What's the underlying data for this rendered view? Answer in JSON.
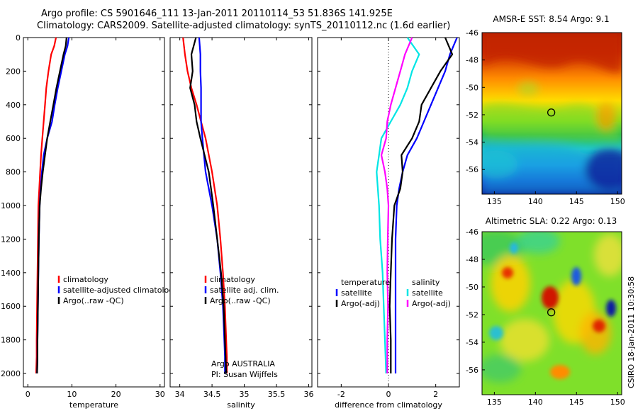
{
  "title": {
    "line1": "Argo profile: CS 5901646_111 13-Jan-2011 20110114_53 51.836S 141.925E",
    "line2": "Climatology: CARS2009. Satellite-adjusted climatology: synTS_20110112.nc (1.6d earlier)"
  },
  "credit": "CSIRO 18-Jan-2011 10:30:58",
  "colors": {
    "climatology": "#ff0000",
    "satellite": "#0000ff",
    "argo": "#000000",
    "argo_adj": "#ff00ff",
    "satellite_sal": "#00e5e5"
  },
  "chart_data": [
    {
      "type": "line",
      "xlabel": "temperature",
      "ylabel": "",
      "xlim": [
        -1,
        31
      ],
      "ylim": [
        2080,
        0
      ],
      "y_reversed": true,
      "xticks": [
        0,
        10,
        20,
        30
      ],
      "yticks": [
        0,
        200,
        400,
        600,
        800,
        1000,
        1200,
        1400,
        1600,
        1800,
        2000
      ],
      "legend_position": "bottom-right",
      "legend": [
        "climatology",
        "satellite-adjusted climatology",
        "Argo(..raw -QC)"
      ],
      "series": [
        {
          "name": "climatology",
          "color": "#ff0000",
          "x": [
            6.4,
            6.0,
            5.3,
            4.7,
            4.2,
            3.9,
            3.6,
            3.3,
            3.0,
            2.8,
            2.6,
            2.4,
            2.3,
            2.2,
            2.1,
            2.0,
            2.0,
            1.9
          ],
          "y": [
            0,
            50,
            100,
            200,
            300,
            400,
            500,
            600,
            700,
            800,
            900,
            1000,
            1200,
            1400,
            1600,
            1800,
            1900,
            2000
          ]
        },
        {
          "name": "satellite-adjusted climatology",
          "color": "#0000ff",
          "x": [
            9.3,
            9.0,
            8.4,
            7.6,
            6.8,
            6.1,
            5.5,
            4.4,
            3.6,
            3.2,
            2.9,
            2.7,
            2.5,
            2.4,
            2.3,
            2.2,
            2.2,
            2.1
          ],
          "y": [
            0,
            50,
            100,
            200,
            300,
            400,
            500,
            600,
            700,
            800,
            900,
            1000,
            1200,
            1400,
            1600,
            1800,
            1900,
            2000
          ]
        },
        {
          "name": "Argo(..raw -QC)",
          "color": "#000000",
          "x": [
            8.8,
            8.6,
            8.1,
            7.3,
            6.5,
            5.8,
            5.1,
            4.4,
            3.9,
            3.4,
            3.0,
            2.7,
            2.5,
            2.4,
            2.3,
            2.2,
            2.2,
            2.1
          ],
          "y": [
            0,
            50,
            100,
            200,
            300,
            400,
            500,
            600,
            700,
            800,
            900,
            1000,
            1200,
            1400,
            1600,
            1800,
            1900,
            2000
          ]
        }
      ]
    },
    {
      "type": "line",
      "xlabel": "salinity",
      "ylabel": "",
      "xlim": [
        33.85,
        36.05
      ],
      "ylim": [
        2080,
        0
      ],
      "y_reversed": true,
      "xticks": [
        34,
        34.5,
        35,
        35.5,
        36
      ],
      "yticks": [
        0,
        200,
        400,
        600,
        800,
        1000,
        1200,
        1400,
        1600,
        1800,
        2000
      ],
      "legend_position": "bottom-right",
      "legend": [
        "climatology",
        "satellite adj. clim.",
        "Argo(..raw -QC)"
      ],
      "annotations": [
        "Argo AUSTRALIA",
        "PI: Susan Wijffels"
      ],
      "series": [
        {
          "name": "climatology",
          "color": "#ff0000",
          "x": [
            34.05,
            34.08,
            34.12,
            34.18,
            34.26,
            34.33,
            34.4,
            34.5,
            34.58,
            34.63,
            34.67,
            34.7,
            34.72,
            34.73,
            34.73
          ],
          "y": [
            0,
            100,
            200,
            300,
            400,
            500,
            600,
            800,
            1000,
            1200,
            1400,
            1600,
            1800,
            1900,
            2000
          ]
        },
        {
          "name": "satellite adj. clim.",
          "color": "#0000ff",
          "x": [
            34.3,
            34.32,
            34.32,
            34.33,
            34.33,
            34.33,
            34.35,
            34.4,
            34.5,
            34.58,
            34.63,
            34.67,
            34.69,
            34.7,
            34.7
          ],
          "y": [
            0,
            100,
            200,
            300,
            400,
            500,
            600,
            800,
            1000,
            1200,
            1400,
            1600,
            1800,
            1900,
            2000
          ]
        },
        {
          "name": "Argo(..raw -QC)",
          "color": "#000000",
          "x": [
            34.25,
            34.18,
            34.2,
            34.16,
            34.23,
            34.26,
            34.32,
            34.45,
            34.52,
            34.58,
            34.64,
            34.68,
            34.7,
            34.71,
            34.72
          ],
          "y": [
            0,
            100,
            200,
            300,
            400,
            500,
            600,
            800,
            1000,
            1200,
            1400,
            1600,
            1800,
            1900,
            2000
          ]
        }
      ]
    },
    {
      "type": "line",
      "xlabel": "difference from climatology",
      "ylabel": "",
      "xlim": [
        -3,
        3
      ],
      "ylim": [
        2080,
        0
      ],
      "y_reversed": true,
      "xticks": [
        -2,
        0,
        2
      ],
      "yticks": [
        0,
        200,
        400,
        600,
        800,
        1000,
        1200,
        1400,
        1600,
        1800,
        2000
      ],
      "zero_line": "dotted",
      "legend_position": "bottom",
      "legend_groups": [
        {
          "heading": "temperature",
          "items": [
            "satellite",
            "Argo(-adj)"
          ]
        },
        {
          "heading": "salinity",
          "items": [
            "satellite",
            "Argo(-adj)"
          ]
        }
      ],
      "series": [
        {
          "name": "temperature satellite",
          "color": "#0000ff",
          "x": [
            2.9,
            2.6,
            2.4,
            2.1,
            1.8,
            1.5,
            1.2,
            0.8,
            0.6,
            0.45,
            0.35,
            0.3,
            0.3,
            0.3,
            0.3,
            0.3
          ],
          "y": [
            0,
            100,
            200,
            300,
            400,
            500,
            600,
            700,
            800,
            900,
            1000,
            1200,
            1400,
            1600,
            1800,
            2000
          ]
        },
        {
          "name": "temperature Argo(-adj)",
          "color": "#000000",
          "x": [
            2.4,
            2.7,
            2.2,
            1.8,
            1.4,
            1.3,
            1.0,
            0.55,
            0.6,
            0.5,
            0.25,
            0.15,
            0.1,
            0.05,
            0.1,
            0.1
          ],
          "y": [
            0,
            100,
            200,
            300,
            400,
            500,
            600,
            700,
            800,
            900,
            1000,
            1200,
            1400,
            1600,
            1800,
            2000
          ]
        },
        {
          "name": "salinity satellite",
          "color": "#00e5e5",
          "x": [
            0.8,
            1.3,
            1.0,
            0.8,
            0.5,
            0.1,
            -0.3,
            -0.4,
            -0.5,
            -0.45,
            -0.4,
            -0.35,
            -0.25,
            -0.2,
            -0.15,
            -0.1
          ],
          "y": [
            0,
            100,
            200,
            300,
            400,
            500,
            600,
            700,
            800,
            900,
            1000,
            1200,
            1400,
            1600,
            1800,
            2000
          ]
        },
        {
          "name": "salinity Argo(-adj)",
          "color": "#ff00ff",
          "x": [
            1.0,
            0.7,
            0.5,
            0.3,
            0.1,
            -0.05,
            -0.1,
            -0.3,
            -0.15,
            -0.05,
            0.0,
            -0.03,
            -0.05,
            -0.02,
            -0.05,
            -0.05
          ],
          "y": [
            0,
            100,
            200,
            300,
            400,
            500,
            600,
            700,
            800,
            900,
            1000,
            1200,
            1400,
            1600,
            1800,
            2000
          ]
        }
      ]
    },
    {
      "type": "heatmap",
      "title": "AMSR-E SST: 8.54 Argo: 9.1",
      "xlim": [
        133.5,
        150.5
      ],
      "ylim": [
        -57.8,
        -46
      ],
      "xticks": [
        135,
        140,
        145,
        150
      ],
      "yticks": [
        -46,
        -48,
        -50,
        -52,
        -54,
        -56
      ],
      "marker": {
        "lon": 141.925,
        "lat": -51.836
      }
    },
    {
      "type": "heatmap",
      "title": "Altimetric SLA: 0.22 Argo: 0.13",
      "xlim": [
        133.5,
        150.5
      ],
      "ylim": [
        -57.8,
        -46
      ],
      "xticks": [
        135,
        140,
        145,
        150
      ],
      "yticks": [
        -46,
        -48,
        -50,
        -52,
        -54,
        -56
      ],
      "marker": {
        "lon": 141.925,
        "lat": -51.836
      }
    }
  ]
}
